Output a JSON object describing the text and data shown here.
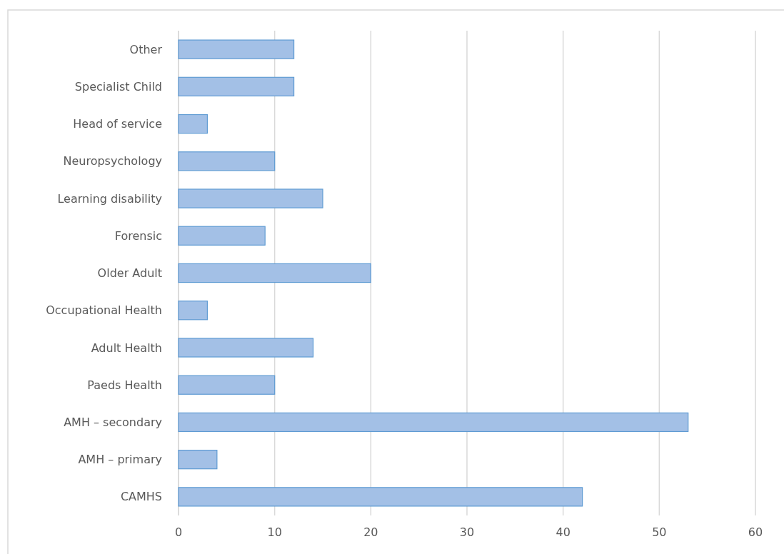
{
  "chart_data": {
    "type": "bar",
    "orientation": "horizontal",
    "categories": [
      "Other",
      "Specialist Child",
      "Head of service",
      "Neuropsychology",
      "Learning disability",
      "Forensic",
      "Older Adult",
      "Occupational Health",
      "Adult Health",
      "Paeds Health",
      "AMH – secondary",
      "AMH – primary",
      "CAMHS"
    ],
    "values": [
      12,
      12,
      3,
      10,
      15,
      9,
      20,
      3,
      14,
      10,
      53,
      4,
      42
    ],
    "color": "#a3c0e6",
    "xlim": [
      0,
      60
    ],
    "xticks": [
      0,
      10,
      20,
      30,
      40,
      50,
      60
    ],
    "grid": "x"
  }
}
